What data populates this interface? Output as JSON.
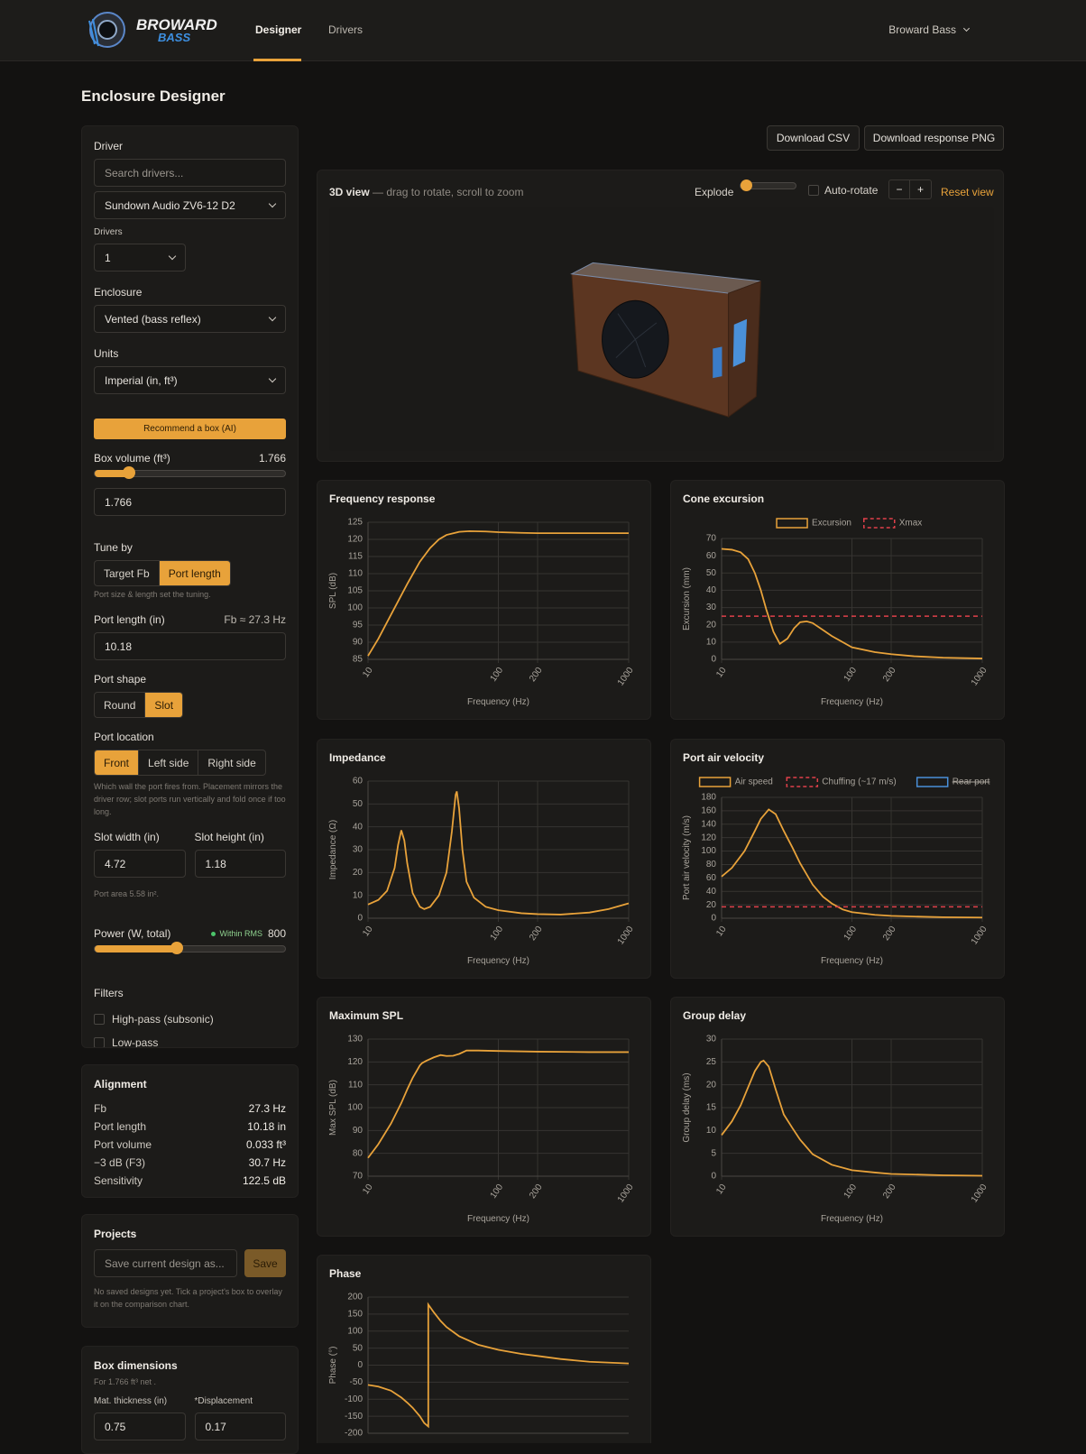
{
  "nav": {
    "logo_top": "BROWARD",
    "logo_bottom": "BASS",
    "tabs": [
      "Designer",
      "Drivers"
    ],
    "active_tab": 0,
    "account": "Broward Bass"
  },
  "page_title": "Enclosure Designer",
  "sidebar": {
    "driver": {
      "label": "Driver",
      "search_placeholder": "Search drivers...",
      "selected": "Sundown Audio ZV6-12 D2"
    },
    "drivers_count": {
      "label": "Drivers",
      "value": "1"
    },
    "enclosure": {
      "label": "Enclosure",
      "value": "Vented (bass reflex)"
    },
    "units": {
      "label": "Units",
      "value": "Imperial (in, ft³)"
    },
    "recommend_button": "Recommend a box (AI)",
    "box_volume": {
      "label": "Box volume (ft³)",
      "value": "1.766"
    },
    "tune_by": {
      "label": "Tune by",
      "options": [
        "Target Fb",
        "Port length"
      ],
      "active": 1,
      "hint": "Port size & length set the tuning."
    },
    "port_length": {
      "label": "Port length (in)",
      "fb": "Fb ≈ 27.3 Hz",
      "value": "10.18"
    },
    "port_shape": {
      "label": "Port shape",
      "options": [
        "Round",
        "Slot"
      ],
      "active": 1
    },
    "port_location": {
      "label": "Port location",
      "options": [
        "Front",
        "Left side",
        "Right side"
      ],
      "active": 0,
      "hint": "Which wall the port fires from. Placement mirrors the driver row; slot ports run vertically and fold once if too long."
    },
    "slot_width": {
      "label": "Slot width (in)",
      "value": "4.72"
    },
    "slot_height": {
      "label": "Slot height (in)",
      "value": "1.18"
    },
    "port_area": "Port area 5.58 in².",
    "power": {
      "label": "Power (W, total)",
      "status": "Within RMS",
      "value": "800"
    },
    "filters": {
      "label": "Filters",
      "options": [
        "High-pass (subsonic)",
        "Low-pass"
      ]
    }
  },
  "alignment": {
    "title": "Alignment",
    "rows": [
      [
        "Fb",
        "27.3 Hz"
      ],
      [
        "Port length",
        "10.18 in"
      ],
      [
        "Port volume",
        "0.033 ft³"
      ],
      [
        "−3 dB (F3)",
        "30.7 Hz"
      ],
      [
        "Sensitivity",
        "122.5 dB"
      ]
    ]
  },
  "projects": {
    "title": "Projects",
    "placeholder": "Save current design as...",
    "save": "Save",
    "note": "No saved designs yet. Tick a project's box to overlay it on the comparison chart."
  },
  "box_dimensions": {
    "title": "Box dimensions",
    "subtitle": "For 1.766 ft³ net .",
    "thickness": {
      "label": "Mat. thickness (in)",
      "value": "0.75"
    },
    "displacement": {
      "label": "*Displacement",
      "value": "0.17"
    }
  },
  "toolbar": {
    "buttons": [
      "Download CSV",
      "Download response PNG"
    ]
  },
  "view3d": {
    "title": "3D view",
    "hint": "— drag to rotate, scroll to zoom",
    "explode": "Explode",
    "auto_rotate": "Auto-rotate",
    "zoom_out": "−",
    "zoom_in": "+",
    "reset": "Reset view"
  },
  "chart_data": [
    {
      "type": "line",
      "title": "Frequency response",
      "xlabel": "Frequency (Hz)",
      "ylabel": "SPL (dB)",
      "xscale": "log",
      "grid": true,
      "x": [
        10,
        12,
        15,
        20,
        25,
        30,
        35,
        40,
        50,
        60,
        80,
        100,
        150,
        200,
        300,
        500,
        700,
        1000
      ],
      "xlim": [
        10,
        1000
      ],
      "xticks": [
        10,
        100,
        200,
        1000
      ],
      "ylim": [
        85,
        125
      ],
      "yticks": [
        85,
        90,
        95,
        100,
        105,
        110,
        115,
        120,
        125
      ],
      "series": [
        {
          "color": "#e8a23a",
          "values": [
            86,
            91,
            98,
            107,
            113.5,
            117.5,
            120,
            121.3,
            122.2,
            122.4,
            122.3,
            122.1,
            121.9,
            121.8,
            121.8,
            121.8,
            121.8,
            121.8
          ]
        }
      ]
    },
    {
      "type": "line",
      "title": "Cone excursion",
      "xlabel": "Frequency (Hz)",
      "ylabel": "Excursion (mm)",
      "xscale": "log",
      "grid": true,
      "legend": "top",
      "x": [
        10,
        12,
        14,
        16,
        18,
        20,
        22,
        25,
        28,
        32,
        36,
        40,
        45,
        50,
        60,
        70,
        100,
        150,
        200,
        300,
        500,
        1000
      ],
      "xlim": [
        10,
        1000
      ],
      "xticks": [
        10,
        100,
        200,
        1000
      ],
      "ylim": [
        0,
        70
      ],
      "yticks": [
        0,
        10,
        20,
        30,
        40,
        50,
        60,
        70
      ],
      "series": [
        {
          "name": "Excursion",
          "color": "#e8a23a",
          "values": [
            64,
            63.5,
            62,
            58,
            50,
            40,
            29,
            16,
            9,
            12,
            18,
            21.5,
            22,
            21,
            17,
            13.5,
            7,
            4.2,
            3,
            1.8,
            1,
            0.5
          ]
        },
        {
          "name": "Xmax",
          "color": "#e0404a",
          "dash": true,
          "value": 25
        }
      ]
    },
    {
      "type": "line",
      "title": "Impedance",
      "xlabel": "Frequency (Hz)",
      "ylabel": "Impedance (Ω)",
      "xscale": "log",
      "grid": true,
      "x": [
        10,
        12,
        14,
        16,
        17,
        18,
        19,
        20,
        22,
        25,
        27,
        30,
        35,
        40,
        44,
        47,
        48,
        50,
        53,
        57,
        65,
        80,
        100,
        150,
        200,
        300,
        500,
        700,
        1000
      ],
      "xlim": [
        10,
        1000
      ],
      "xticks": [
        10,
        100,
        200,
        1000
      ],
      "ylim": [
        0,
        60
      ],
      "yticks": [
        0,
        10,
        20,
        30,
        40,
        50,
        60
      ],
      "series": [
        {
          "color": "#e8a23a",
          "values": [
            6,
            8,
            12,
            22,
            32,
            38.5,
            34,
            24,
            11,
            5,
            4,
            5,
            10,
            20,
            38,
            54,
            55.5,
            48,
            30,
            16,
            9,
            5,
            3.5,
            2.2,
            1.8,
            1.6,
            2.5,
            4,
            6.5
          ]
        }
      ]
    },
    {
      "type": "line",
      "title": "Port air velocity",
      "xlabel": "Frequency (Hz)",
      "ylabel": "Port air velocity (m/s)",
      "xscale": "log",
      "grid": true,
      "legend": "top",
      "x": [
        10,
        12,
        15,
        18,
        20,
        23,
        26,
        30,
        35,
        40,
        50,
        60,
        70,
        85,
        100,
        150,
        200,
        300,
        500,
        1000
      ],
      "xlim": [
        10,
        1000
      ],
      "xticks": [
        10,
        100,
        200,
        1000
      ],
      "ylim": [
        0,
        180
      ],
      "yticks": [
        0,
        20,
        40,
        60,
        80,
        100,
        120,
        140,
        160,
        180
      ],
      "series": [
        {
          "name": "Air speed",
          "color": "#e8a23a",
          "values": [
            62,
            75,
            100,
            130,
            148,
            162,
            155,
            130,
            105,
            82,
            50,
            32,
            22,
            13,
            9,
            5,
            3.5,
            2.5,
            1.5,
            1
          ]
        },
        {
          "name": "Chuffing (~17 m/s)",
          "color": "#e0404a",
          "dash": true,
          "value": 17
        },
        {
          "name": "Rear port",
          "color": "#4a90d9",
          "hidden": true
        }
      ]
    },
    {
      "type": "line",
      "title": "Maximum SPL",
      "xlabel": "Frequency (Hz)",
      "ylabel": "Max SPL (dB)",
      "xscale": "log",
      "grid": true,
      "x": [
        10,
        12,
        15,
        18,
        20,
        22,
        25,
        26,
        28,
        32,
        36,
        40,
        45,
        50,
        57,
        70,
        100,
        200,
        500,
        1000
      ],
      "xlim": [
        10,
        1000
      ],
      "xticks": [
        10,
        100,
        200,
        1000
      ],
      "ylim": [
        70,
        130
      ],
      "yticks": [
        70,
        80,
        90,
        100,
        110,
        120,
        130
      ],
      "series": [
        {
          "color": "#e8a23a",
          "values": [
            78,
            84,
            93,
            102,
            108,
            113,
            118.5,
            119.5,
            120.5,
            122,
            123,
            122.6,
            122.7,
            123.5,
            125,
            125,
            124.8,
            124.5,
            124.3,
            124.3
          ]
        }
      ]
    },
    {
      "type": "line",
      "title": "Group delay",
      "xlabel": "Frequency (Hz)",
      "ylabel": "Group delay (ms)",
      "xscale": "log",
      "grid": true,
      "x": [
        10,
        12,
        14,
        16,
        18,
        20,
        21,
        23,
        26,
        30,
        35,
        40,
        50,
        70,
        100,
        150,
        200,
        500,
        1000
      ],
      "xlim": [
        10,
        1000
      ],
      "xticks": [
        10,
        100,
        200,
        1000
      ],
      "ylim": [
        0,
        30
      ],
      "yticks": [
        0,
        5,
        10,
        15,
        20,
        25,
        30
      ],
      "series": [
        {
          "color": "#e8a23a",
          "values": [
            9,
            12,
            15.5,
            19.5,
            23,
            25,
            25.3,
            24,
            19,
            13.5,
            10.5,
            8,
            4.8,
            2.5,
            1.3,
            0.8,
            0.5,
            0.2,
            0.1
          ]
        }
      ]
    },
    {
      "type": "line",
      "title": "Phase",
      "ylabel": "Phase (°)",
      "xscale": "log",
      "grid": true,
      "x": [
        10,
        12,
        15,
        18,
        20,
        22,
        25,
        27,
        29,
        29,
        32,
        36,
        40,
        50,
        70,
        100,
        150,
        200,
        300,
        500,
        1000
      ],
      "xlim": [
        10,
        1000
      ],
      "ylim": [
        -200,
        200
      ],
      "yticks": [
        -200,
        -150,
        -100,
        -50,
        0,
        50,
        100,
        150,
        200
      ],
      "series": [
        {
          "color": "#e8a23a",
          "values": [
            -58,
            -63,
            -75,
            -95,
            -110,
            -125,
            -150,
            -170,
            -180,
            178,
            155,
            130,
            112,
            85,
            60,
            45,
            33,
            27,
            18,
            10,
            5
          ]
        }
      ]
    }
  ]
}
